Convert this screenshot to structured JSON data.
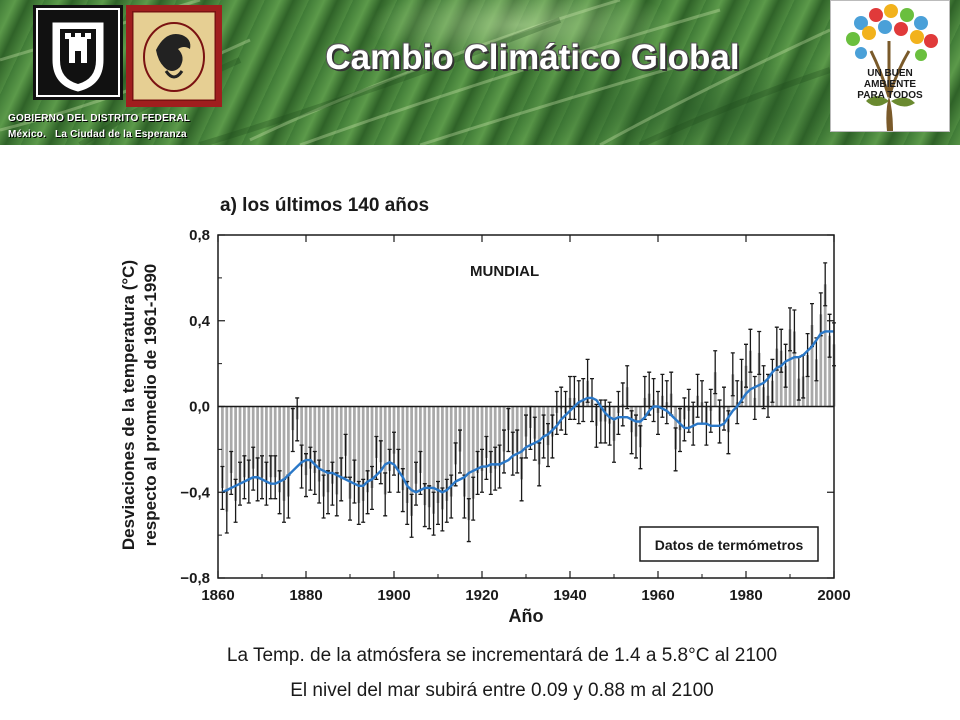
{
  "header": {
    "title": "Cambio Climático Global",
    "gov_line1": "GOBIERNO DEL DISTRITO FEDERAL",
    "gov_line2": "México.   La Ciudad de la Esperanza",
    "logo_lines": [
      "UN BUEN",
      "AMBIENTE",
      "PARA TODOS"
    ]
  },
  "chart_data": {
    "type": "bar",
    "title": "a) los últimos 140 años",
    "annotation": "MUNDIAL",
    "legend": "Datos de termómetros",
    "legend_position": "bottom-right",
    "xlabel": "Año",
    "ylabel_line1": "Desviaciones de la temperatura (°C)",
    "ylabel_line2": "respecto al promedio de 1961-1990",
    "xlim": [
      1860,
      2000
    ],
    "ylim": [
      -0.8,
      0.8
    ],
    "xticks": [
      1860,
      1880,
      1900,
      1920,
      1940,
      1960,
      1980,
      2000
    ],
    "xtick_labels": [
      "1860",
      "1880",
      "1900",
      "1920",
      "1940",
      "1960",
      "1980",
      "2000"
    ],
    "yticks": [
      -0.8,
      -0.4,
      0.0,
      0.4,
      0.8
    ],
    "ytick_labels": [
      "−0,8",
      "−0,4",
      "0,0",
      "0,4",
      "0,8"
    ],
    "years": [
      1861,
      1862,
      1863,
      1864,
      1865,
      1866,
      1867,
      1868,
      1869,
      1870,
      1871,
      1872,
      1873,
      1874,
      1875,
      1876,
      1877,
      1878,
      1879,
      1880,
      1881,
      1882,
      1883,
      1884,
      1885,
      1886,
      1887,
      1888,
      1889,
      1890,
      1891,
      1892,
      1893,
      1894,
      1895,
      1896,
      1897,
      1898,
      1899,
      1900,
      1901,
      1902,
      1903,
      1904,
      1905,
      1906,
      1907,
      1908,
      1909,
      1910,
      1911,
      1912,
      1913,
      1914,
      1915,
      1916,
      1917,
      1918,
      1919,
      1920,
      1921,
      1922,
      1923,
      1924,
      1925,
      1926,
      1927,
      1928,
      1929,
      1930,
      1931,
      1932,
      1933,
      1934,
      1935,
      1936,
      1937,
      1938,
      1939,
      1940,
      1941,
      1942,
      1943,
      1944,
      1945,
      1946,
      1947,
      1948,
      1949,
      1950,
      1951,
      1952,
      1953,
      1954,
      1955,
      1956,
      1957,
      1958,
      1959,
      1960,
      1961,
      1962,
      1963,
      1964,
      1965,
      1966,
      1967,
      1968,
      1969,
      1970,
      1971,
      1972,
      1973,
      1974,
      1975,
      1976,
      1977,
      1978,
      1979,
      1980,
      1981,
      1982,
      1983,
      1984,
      1985,
      1986,
      1987,
      1988,
      1989,
      1990,
      1991,
      1992,
      1993,
      1994,
      1995,
      1996,
      1997,
      1998,
      1999,
      2000
    ],
    "anomalies": [
      -0.38,
      -0.49,
      -0.31,
      -0.44,
      -0.36,
      -0.33,
      -0.35,
      -0.29,
      -0.34,
      -0.33,
      -0.36,
      -0.33,
      -0.33,
      -0.4,
      -0.44,
      -0.42,
      -0.11,
      -0.06,
      -0.28,
      -0.32,
      -0.29,
      -0.31,
      -0.35,
      -0.42,
      -0.4,
      -0.36,
      -0.41,
      -0.34,
      -0.23,
      -0.43,
      -0.35,
      -0.45,
      -0.44,
      -0.4,
      -0.38,
      -0.24,
      -0.26,
      -0.41,
      -0.3,
      -0.22,
      -0.3,
      -0.39,
      -0.45,
      -0.51,
      -0.36,
      -0.31,
      -0.46,
      -0.47,
      -0.5,
      -0.45,
      -0.48,
      -0.44,
      -0.42,
      -0.27,
      -0.21,
      -0.42,
      -0.53,
      -0.43,
      -0.31,
      -0.3,
      -0.24,
      -0.31,
      -0.29,
      -0.28,
      -0.21,
      -0.11,
      -0.22,
      -0.21,
      -0.34,
      -0.14,
      -0.1,
      -0.15,
      -0.27,
      -0.14,
      -0.18,
      -0.14,
      -0.03,
      -0.01,
      -0.03,
      0.04,
      0.04,
      0.02,
      0.03,
      0.12,
      0.03,
      -0.09,
      -0.07,
      -0.07,
      -0.08,
      -0.16,
      -0.03,
      0.01,
      0.09,
      -0.12,
      -0.14,
      -0.19,
      0.04,
      0.06,
      0.03,
      -0.03,
      0.05,
      0.02,
      0.06,
      -0.2,
      -0.11,
      -0.06,
      -0.02,
      -0.08,
      0.05,
      0.02,
      -0.08,
      -0.02,
      0.16,
      -0.07,
      -0.01,
      -0.12,
      0.15,
      0.02,
      0.12,
      0.19,
      0.26,
      0.04,
      0.25,
      0.09,
      0.05,
      0.12,
      0.27,
      0.26,
      0.19,
      0.36,
      0.35,
      0.13,
      0.14,
      0.24,
      0.38,
      0.22,
      0.43,
      0.57,
      0.33,
      0.29
    ],
    "smoothed": [
      -0.4,
      -0.39,
      -0.38,
      -0.37,
      -0.36,
      -0.35,
      -0.34,
      -0.33,
      -0.33,
      -0.34,
      -0.35,
      -0.36,
      -0.36,
      -0.35,
      -0.34,
      -0.32,
      -0.3,
      -0.28,
      -0.26,
      -0.25,
      -0.25,
      -0.27,
      -0.29,
      -0.3,
      -0.31,
      -0.31,
      -0.32,
      -0.33,
      -0.34,
      -0.35,
      -0.36,
      -0.37,
      -0.37,
      -0.35,
      -0.34,
      -0.32,
      -0.3,
      -0.27,
      -0.26,
      -0.27,
      -0.3,
      -0.33,
      -0.37,
      -0.39,
      -0.4,
      -0.39,
      -0.38,
      -0.38,
      -0.38,
      -0.39,
      -0.4,
      -0.39,
      -0.37,
      -0.35,
      -0.34,
      -0.33,
      -0.31,
      -0.3,
      -0.29,
      -0.28,
      -0.28,
      -0.27,
      -0.27,
      -0.27,
      -0.26,
      -0.25,
      -0.23,
      -0.22,
      -0.21,
      -0.19,
      -0.18,
      -0.17,
      -0.16,
      -0.14,
      -0.13,
      -0.11,
      -0.09,
      -0.06,
      -0.04,
      -0.02,
      0.0,
      0.02,
      0.03,
      0.04,
      0.04,
      0.03,
      0.0,
      -0.03,
      -0.05,
      -0.06,
      -0.05,
      -0.05,
      -0.05,
      -0.06,
      -0.07,
      -0.07,
      -0.05,
      -0.02,
      0.0,
      0.0,
      -0.01,
      -0.02,
      -0.04,
      -0.06,
      -0.08,
      -0.1,
      -0.1,
      -0.09,
      -0.08,
      -0.08,
      -0.08,
      -0.09,
      -0.09,
      -0.09,
      -0.08,
      -0.05,
      -0.02,
      0.0,
      0.03,
      0.06,
      0.08,
      0.09,
      0.1,
      0.11,
      0.13,
      0.16,
      0.18,
      0.19,
      0.21,
      0.22,
      0.23,
      0.23,
      0.24,
      0.26,
      0.28,
      0.31,
      0.34,
      0.35,
      0.35,
      0.35
    ],
    "error_bar": 0.1
  },
  "captions": [
    "La Temp. de la atmósfera se incrementará de 1.4 a 5.8°C al 2100",
    "El nivel del mar subirá entre 0.09 y 0.88 m al 2100"
  ]
}
